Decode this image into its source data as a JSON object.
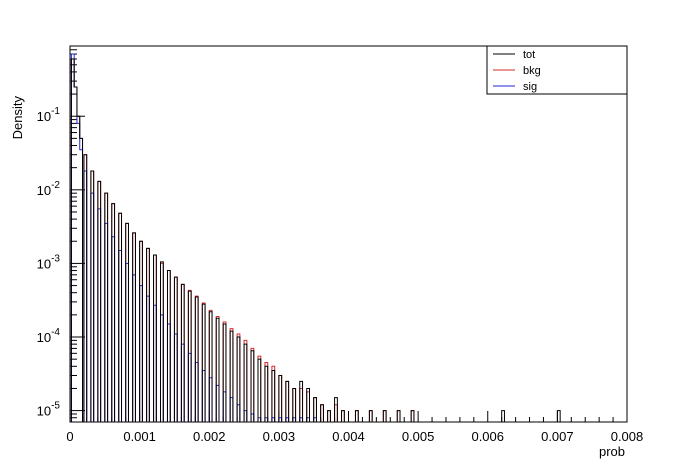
{
  "chart_data": {
    "type": "line",
    "style": "step-histogram",
    "xlabel": "prob",
    "ylabel": "Density",
    "xlim": [
      0,
      0.008
    ],
    "ylim": [
      7e-06,
      0.9
    ],
    "yscale": "log",
    "grid": false,
    "legend_position": "top-right",
    "x_ticks": [
      "0",
      "0.001",
      "0.002",
      "0.003",
      "0.004",
      "0.005",
      "0.006",
      "0.007",
      "0.008"
    ],
    "y_ticks": [
      {
        "mantissa": "10",
        "exp": "-5",
        "value": 1e-05
      },
      {
        "mantissa": "10",
        "exp": "-4",
        "value": 0.0001
      },
      {
        "mantissa": "10",
        "exp": "-3",
        "value": 0.001
      },
      {
        "mantissa": "10",
        "exp": "-2",
        "value": 0.01
      },
      {
        "mantissa": "10",
        "exp": "-1",
        "value": 0.1
      }
    ],
    "series": [
      {
        "name": "tot",
        "color": "#000000",
        "points": [
          [
            2e-05,
            0.6
          ],
          [
            6e-05,
            0.25
          ],
          [
            0.0001,
            0.1
          ],
          [
            0.00014,
            0.05
          ],
          [
            0.0002,
            0.03
          ],
          [
            0.0003,
            0.018
          ],
          [
            0.0004,
            0.013
          ],
          [
            0.0005,
            0.009
          ],
          [
            0.0006,
            0.0065
          ],
          [
            0.0007,
            0.0048
          ],
          [
            0.0008,
            0.0035
          ],
          [
            0.0009,
            0.0026
          ],
          [
            0.001,
            0.002
          ],
          [
            0.0011,
            0.0016
          ],
          [
            0.0012,
            0.0013
          ],
          [
            0.0013,
            0.00105
          ],
          [
            0.0014,
            0.0008
          ],
          [
            0.0015,
            0.00065
          ],
          [
            0.0016,
            0.00052
          ],
          [
            0.0017,
            0.00042
          ],
          [
            0.0018,
            0.00035
          ],
          [
            0.0019,
            0.00028
          ],
          [
            0.002,
            0.00022
          ],
          [
            0.0021,
            0.00018
          ],
          [
            0.0022,
            0.00015
          ],
          [
            0.0023,
            0.00012
          ],
          [
            0.0024,
            0.0001
          ],
          [
            0.0025,
            8e-05
          ],
          [
            0.0026,
            6.5e-05
          ],
          [
            0.0027,
            5e-05
          ],
          [
            0.0028,
            4e-05
          ],
          [
            0.0029,
            3.5e-05
          ],
          [
            0.003,
            3e-05
          ],
          [
            0.0031,
            2.5e-05
          ],
          [
            0.0032,
            2e-05
          ],
          [
            0.0033,
            2.5e-05
          ],
          [
            0.0034,
            2e-05
          ],
          [
            0.0035,
            1.5e-05
          ],
          [
            0.0036,
            1.2e-05
          ],
          [
            0.0037,
            1e-05
          ],
          [
            0.0038,
            1.5e-05
          ],
          [
            0.0039,
            1e-05
          ],
          [
            0.0041,
            1e-05
          ],
          [
            0.0043,
            1e-05
          ],
          [
            0.0045,
            1e-05
          ],
          [
            0.0047,
            1e-05
          ],
          [
            0.0049,
            1e-05
          ],
          [
            0.0062,
            1e-05
          ],
          [
            0.007,
            1e-05
          ]
        ]
      },
      {
        "name": "bkg",
        "color": "#d42a2a",
        "points": [
          [
            2e-05,
            0.6
          ],
          [
            6e-05,
            0.25
          ],
          [
            0.0001,
            0.1
          ],
          [
            0.00014,
            0.05
          ],
          [
            0.0002,
            0.03
          ],
          [
            0.0003,
            0.018
          ],
          [
            0.0004,
            0.013
          ],
          [
            0.0005,
            0.009
          ],
          [
            0.0006,
            0.0065
          ],
          [
            0.0007,
            0.0048
          ],
          [
            0.0008,
            0.0035
          ],
          [
            0.0009,
            0.0026
          ],
          [
            0.001,
            0.002
          ],
          [
            0.0011,
            0.0016
          ],
          [
            0.0012,
            0.0013
          ],
          [
            0.0013,
            0.001
          ],
          [
            0.0014,
            0.0008
          ],
          [
            0.0015,
            0.00065
          ],
          [
            0.0016,
            0.00052
          ],
          [
            0.0017,
            0.00043
          ],
          [
            0.0018,
            0.00036
          ],
          [
            0.0019,
            0.00029
          ],
          [
            0.002,
            0.00023
          ],
          [
            0.0021,
            0.00019
          ],
          [
            0.0022,
            0.00016
          ],
          [
            0.0023,
            0.00013
          ],
          [
            0.0024,
            0.00011
          ],
          [
            0.0025,
            9e-05
          ],
          [
            0.0026,
            7e-05
          ],
          [
            0.0027,
            5.5e-05
          ],
          [
            0.0028,
            4.5e-05
          ],
          [
            0.0029,
            4e-05
          ],
          [
            0.003,
            3e-05
          ],
          [
            0.0031,
            2.5e-05
          ],
          [
            0.0032,
            2e-05
          ],
          [
            0.0033,
            2e-05
          ],
          [
            0.0034,
            1.8e-05
          ],
          [
            0.0035,
            1.5e-05
          ],
          [
            0.0036,
            1.2e-05
          ],
          [
            0.0037,
            1e-05
          ],
          [
            0.0038,
            1.2e-05
          ],
          [
            0.0039,
            1e-05
          ],
          [
            0.0041,
            1e-05
          ],
          [
            0.0043,
            1e-05
          ],
          [
            0.0045,
            1e-05
          ],
          [
            0.0047,
            1e-05
          ],
          [
            0.0049,
            1e-05
          ]
        ]
      },
      {
        "name": "sig",
        "color": "#1f2ad4",
        "points": [
          [
            2e-05,
            0.7
          ],
          [
            6e-05,
            0.25
          ],
          [
            0.0001,
            0.08
          ],
          [
            0.00014,
            0.035
          ],
          [
            0.0002,
            0.018
          ],
          [
            0.0003,
            0.009
          ],
          [
            0.0004,
            0.0055
          ],
          [
            0.0005,
            0.0035
          ],
          [
            0.0006,
            0.0023
          ],
          [
            0.0007,
            0.0015
          ],
          [
            0.0008,
            0.001
          ],
          [
            0.0009,
            0.0007
          ],
          [
            0.001,
            0.0005
          ],
          [
            0.0011,
            0.00036
          ],
          [
            0.0012,
            0.00027
          ],
          [
            0.0013,
            0.0002
          ],
          [
            0.0014,
            0.00015
          ],
          [
            0.0015,
            0.00011
          ],
          [
            0.0016,
            8e-05
          ],
          [
            0.0017,
            6e-05
          ],
          [
            0.0018,
            4.5e-05
          ],
          [
            0.0019,
            3.5e-05
          ],
          [
            0.002,
            2.8e-05
          ],
          [
            0.0021,
            2.2e-05
          ],
          [
            0.0022,
            1.8e-05
          ],
          [
            0.0023,
            1.5e-05
          ],
          [
            0.0024,
            1.2e-05
          ],
          [
            0.0025,
            1e-05
          ],
          [
            0.0026,
            9e-06
          ],
          [
            0.0027,
            8e-06
          ],
          [
            0.0028,
            8e-06
          ],
          [
            0.0029,
            8e-06
          ],
          [
            0.003,
            8e-06
          ],
          [
            0.0031,
            8e-06
          ],
          [
            0.0032,
            8e-06
          ],
          [
            0.0033,
            8e-06
          ],
          [
            0.0034,
            8e-06
          ],
          [
            0.0035,
            8e-06
          ]
        ]
      }
    ]
  }
}
